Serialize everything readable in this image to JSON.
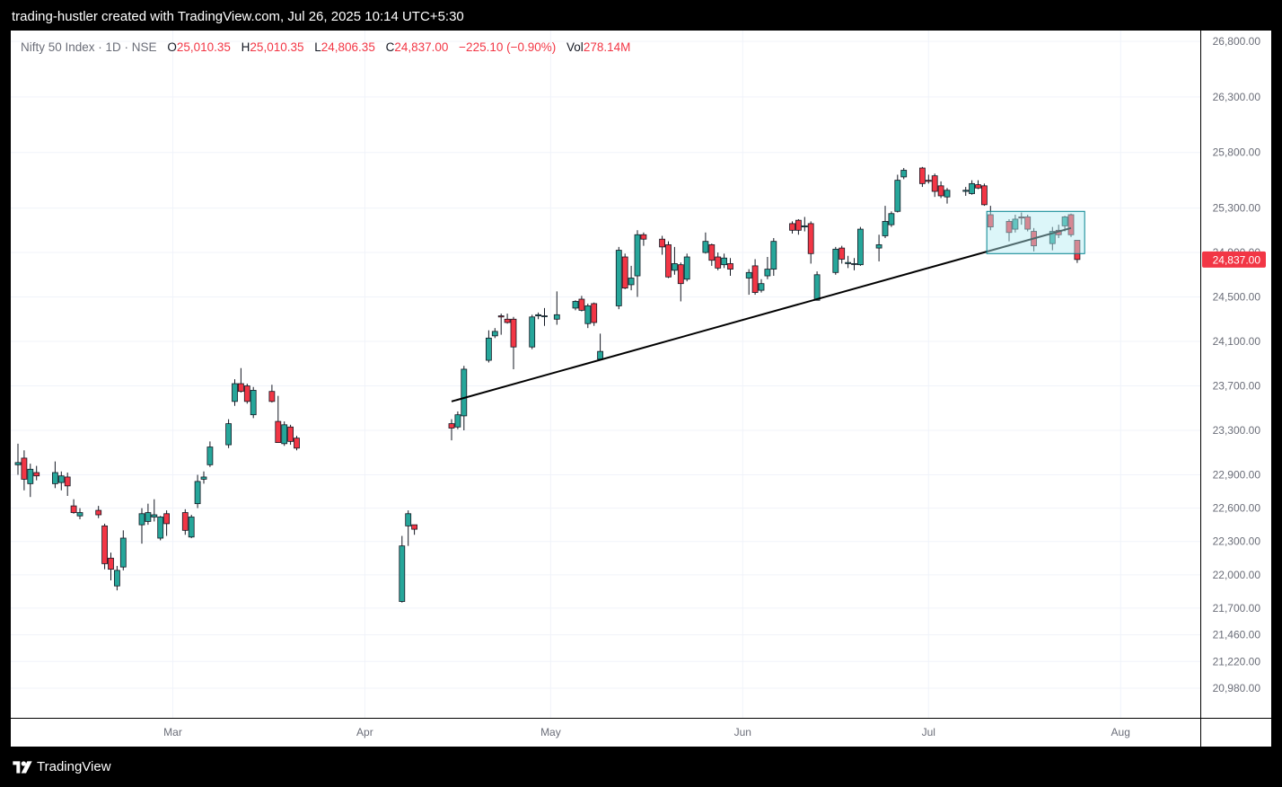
{
  "caption": "trading-hustler created with TradingView.com, Jul 26, 2025 10:14 UTC+5:30",
  "brand": {
    "name": "TradingView",
    "icon": "tradingview-logo-icon"
  },
  "legend": {
    "symbol": "Nifty 50 Index · 1D · NSE",
    "o_label": "O",
    "o_value": "25,010.35",
    "h_label": "H",
    "h_value": "25,010.35",
    "l_label": "L",
    "l_value": "24,806.35",
    "c_label": "C",
    "c_value": "24,837.00",
    "change": "−225.10 (−0.90%)",
    "vol_label": "Vol",
    "vol_value": "278.14M"
  },
  "colors": {
    "up": "#26a69a",
    "down": "#f23645",
    "wick": "#131722",
    "grid": "#f0f3fa",
    "axis_text": "#6a6d78",
    "trendline": "#000000",
    "box_fill": "#b2ebf2",
    "box_stroke": "#00838f",
    "price_tag": "#f23645"
  },
  "chart_data": {
    "type": "candlestick",
    "symbol": "Nifty 50 Index",
    "interval": "1D",
    "exchange": "NSE",
    "y_ticks": [
      26800,
      26300,
      25800,
      25300,
      24900,
      24500,
      24100,
      23700,
      23300,
      22900,
      22600,
      22300,
      22000,
      21700,
      21460,
      21220,
      20980
    ],
    "y_tick_labels": [
      "26,800.00",
      "26,300.00",
      "25,800.00",
      "25,300.00",
      "24,900.00",
      "24,500.00",
      "24,100.00",
      "23,700.00",
      "23,300.00",
      "22,900.00",
      "22,600.00",
      "22,300.00",
      "22,000.00",
      "21,700.00",
      "21,460.00",
      "21,220.00",
      "20,980.00"
    ],
    "x_labels": [
      {
        "label": "Mar",
        "date": "2025-03-01"
      },
      {
        "label": "Apr",
        "date": "2025-04-01"
      },
      {
        "label": "May",
        "date": "2025-05-01"
      },
      {
        "label": "Jun",
        "date": "2025-06-01"
      },
      {
        "label": "Jul",
        "date": "2025-07-01"
      },
      {
        "label": "Aug",
        "date": "2025-08-01"
      }
    ],
    "last_price": 24837.0,
    "last_price_label": "24,837.00",
    "candles": [
      {
        "date": "2025-02-04",
        "o": 22990,
        "h": 23180,
        "l": 22900,
        "c": 23010
      },
      {
        "date": "2025-02-05",
        "o": 23050,
        "h": 23120,
        "l": 22760,
        "c": 22860
      },
      {
        "date": "2025-02-06",
        "o": 22820,
        "h": 23000,
        "l": 22700,
        "c": 22950
      },
      {
        "date": "2025-02-07",
        "o": 22920,
        "h": 22980,
        "l": 22850,
        "c": 22890
      },
      {
        "date": "2025-02-10",
        "o": 22820,
        "h": 23020,
        "l": 22780,
        "c": 22920
      },
      {
        "date": "2025-02-11",
        "o": 22830,
        "h": 22930,
        "l": 22760,
        "c": 22890
      },
      {
        "date": "2025-02-12",
        "o": 22880,
        "h": 22920,
        "l": 22710,
        "c": 22800
      },
      {
        "date": "2025-02-13",
        "o": 22620,
        "h": 22680,
        "l": 22550,
        "c": 22560
      },
      {
        "date": "2025-02-14",
        "o": 22530,
        "h": 22600,
        "l": 22500,
        "c": 22560
      },
      {
        "date": "2025-02-17",
        "o": 22580,
        "h": 22620,
        "l": 22510,
        "c": 22540
      },
      {
        "date": "2025-02-18",
        "o": 22440,
        "h": 22460,
        "l": 22050,
        "c": 22100
      },
      {
        "date": "2025-02-19",
        "o": 22150,
        "h": 22200,
        "l": 21950,
        "c": 22050
      },
      {
        "date": "2025-02-20",
        "o": 21900,
        "h": 22080,
        "l": 21860,
        "c": 22040
      },
      {
        "date": "2025-02-21",
        "o": 22070,
        "h": 22400,
        "l": 22040,
        "c": 22330
      },
      {
        "date": "2025-02-24",
        "o": 22450,
        "h": 22600,
        "l": 22280,
        "c": 22550
      },
      {
        "date": "2025-02-25",
        "o": 22480,
        "h": 22640,
        "l": 22450,
        "c": 22560
      },
      {
        "date": "2025-02-26",
        "o": 22520,
        "h": 22680,
        "l": 22480,
        "c": 22540
      },
      {
        "date": "2025-02-27",
        "o": 22330,
        "h": 22530,
        "l": 22310,
        "c": 22520
      },
      {
        "date": "2025-02-28",
        "o": 22550,
        "h": 22580,
        "l": 22350,
        "c": 22460
      },
      {
        "date": "2025-03-03",
        "o": 22560,
        "h": 22590,
        "l": 22360,
        "c": 22400
      },
      {
        "date": "2025-03-04",
        "o": 22340,
        "h": 22540,
        "l": 22330,
        "c": 22520
      },
      {
        "date": "2025-03-05",
        "o": 22640,
        "h": 22900,
        "l": 22600,
        "c": 22840
      },
      {
        "date": "2025-03-06",
        "o": 22860,
        "h": 22930,
        "l": 22820,
        "c": 22880
      },
      {
        "date": "2025-03-07",
        "o": 22990,
        "h": 23200,
        "l": 22970,
        "c": 23150
      },
      {
        "date": "2025-03-10",
        "o": 23170,
        "h": 23400,
        "l": 23140,
        "c": 23360
      },
      {
        "date": "2025-03-11",
        "o": 23560,
        "h": 23760,
        "l": 23520,
        "c": 23720
      },
      {
        "date": "2025-03-12",
        "o": 23720,
        "h": 23860,
        "l": 23640,
        "c": 23650
      },
      {
        "date": "2025-03-13",
        "o": 23700,
        "h": 23720,
        "l": 23540,
        "c": 23560
      },
      {
        "date": "2025-03-14",
        "o": 23440,
        "h": 23690,
        "l": 23410,
        "c": 23660
      },
      {
        "date": "2025-03-17",
        "o": 23650,
        "h": 23710,
        "l": 23550,
        "c": 23560
      },
      {
        "date": "2025-03-18",
        "o": 23380,
        "h": 23610,
        "l": 23200,
        "c": 23190
      },
      {
        "date": "2025-03-19",
        "o": 23180,
        "h": 23380,
        "l": 23160,
        "c": 23350
      },
      {
        "date": "2025-03-20",
        "o": 23330,
        "h": 23350,
        "l": 23170,
        "c": 23200
      },
      {
        "date": "2025-03-21",
        "o": 23230,
        "h": 23250,
        "l": 23120,
        "c": 23140
      },
      {
        "date": "2025-04-07",
        "o": 21760,
        "h": 22350,
        "l": 21750,
        "c": 22260
      },
      {
        "date": "2025-04-08",
        "o": 22440,
        "h": 22580,
        "l": 22260,
        "c": 22550
      },
      {
        "date": "2025-04-09",
        "o": 22450,
        "h": 22450,
        "l": 22360,
        "c": 22410
      },
      {
        "date": "2025-04-15",
        "o": 23360,
        "h": 23400,
        "l": 23210,
        "c": 23320
      },
      {
        "date": "2025-04-16",
        "o": 23330,
        "h": 23470,
        "l": 23310,
        "c": 23440
      },
      {
        "date": "2025-04-17",
        "o": 23430,
        "h": 23880,
        "l": 23300,
        "c": 23850
      },
      {
        "date": "2025-04-21",
        "o": 23930,
        "h": 24200,
        "l": 23910,
        "c": 24130
      },
      {
        "date": "2025-04-22",
        "o": 24150,
        "h": 24220,
        "l": 24130,
        "c": 24190
      },
      {
        "date": "2025-04-23",
        "o": 24330,
        "h": 24350,
        "l": 24160,
        "c": 24320
      },
      {
        "date": "2025-04-24",
        "o": 24300,
        "h": 24350,
        "l": 24260,
        "c": 24270
      },
      {
        "date": "2025-04-25",
        "o": 24300,
        "h": 24320,
        "l": 23850,
        "c": 24050
      },
      {
        "date": "2025-04-28",
        "o": 24050,
        "h": 24340,
        "l": 24030,
        "c": 24320
      },
      {
        "date": "2025-04-29",
        "o": 24330,
        "h": 24360,
        "l": 24300,
        "c": 24340
      },
      {
        "date": "2025-04-30",
        "o": 24330,
        "h": 24400,
        "l": 24240,
        "c": 24330
      },
      {
        "date": "2025-05-02",
        "o": 24300,
        "h": 24550,
        "l": 24250,
        "c": 24340
      },
      {
        "date": "2025-05-05",
        "o": 24400,
        "h": 24470,
        "l": 24380,
        "c": 24460
      },
      {
        "date": "2025-05-06",
        "o": 24480,
        "h": 24510,
        "l": 24370,
        "c": 24380
      },
      {
        "date": "2025-05-07",
        "o": 24260,
        "h": 24440,
        "l": 24220,
        "c": 24420
      },
      {
        "date": "2025-05-08",
        "o": 24440,
        "h": 24450,
        "l": 24240,
        "c": 24270
      },
      {
        "date": "2025-05-09",
        "o": 23940,
        "h": 24170,
        "l": 23930,
        "c": 24010
      },
      {
        "date": "2025-05-12",
        "o": 24420,
        "h": 24950,
        "l": 24390,
        "c": 24920
      },
      {
        "date": "2025-05-13",
        "o": 24860,
        "h": 24890,
        "l": 24570,
        "c": 24580
      },
      {
        "date": "2025-05-14",
        "o": 24610,
        "h": 24780,
        "l": 24560,
        "c": 24670
      },
      {
        "date": "2025-05-15",
        "o": 24690,
        "h": 25100,
        "l": 24500,
        "c": 25060
      },
      {
        "date": "2025-05-16",
        "o": 25060,
        "h": 25080,
        "l": 24960,
        "c": 25020
      },
      {
        "date": "2025-05-19",
        "o": 25020,
        "h": 25050,
        "l": 24880,
        "c": 24950
      },
      {
        "date": "2025-05-20",
        "o": 24970,
        "h": 25000,
        "l": 24670,
        "c": 24680
      },
      {
        "date": "2025-05-21",
        "o": 24740,
        "h": 24950,
        "l": 24700,
        "c": 24800
      },
      {
        "date": "2025-05-22",
        "o": 24790,
        "h": 24810,
        "l": 24460,
        "c": 24620
      },
      {
        "date": "2025-05-23",
        "o": 24660,
        "h": 24890,
        "l": 24640,
        "c": 24860
      },
      {
        "date": "2025-05-26",
        "o": 24900,
        "h": 25080,
        "l": 24890,
        "c": 25000
      },
      {
        "date": "2025-05-27",
        "o": 24970,
        "h": 24980,
        "l": 24780,
        "c": 24830
      },
      {
        "date": "2025-05-28",
        "o": 24860,
        "h": 24900,
        "l": 24740,
        "c": 24760
      },
      {
        "date": "2025-05-29",
        "o": 24790,
        "h": 24890,
        "l": 24760,
        "c": 24850
      },
      {
        "date": "2025-05-30",
        "o": 24800,
        "h": 24850,
        "l": 24690,
        "c": 24750
      },
      {
        "date": "2025-06-02",
        "o": 24670,
        "h": 24750,
        "l": 24520,
        "c": 24720
      },
      {
        "date": "2025-06-03",
        "o": 24780,
        "h": 24840,
        "l": 24520,
        "c": 24540
      },
      {
        "date": "2025-06-04",
        "o": 24560,
        "h": 24660,
        "l": 24540,
        "c": 24620
      },
      {
        "date": "2025-06-05",
        "o": 24690,
        "h": 24860,
        "l": 24660,
        "c": 24750
      },
      {
        "date": "2025-06-06",
        "o": 24750,
        "h": 25030,
        "l": 24690,
        "c": 25000
      },
      {
        "date": "2025-06-09",
        "o": 25160,
        "h": 25180,
        "l": 25070,
        "c": 25100
      },
      {
        "date": "2025-06-10",
        "o": 25190,
        "h": 25200,
        "l": 25060,
        "c": 25100
      },
      {
        "date": "2025-06-11",
        "o": 25130,
        "h": 25220,
        "l": 25090,
        "c": 25140
      },
      {
        "date": "2025-06-12",
        "o": 25160,
        "h": 25180,
        "l": 24800,
        "c": 24890
      },
      {
        "date": "2025-06-13",
        "o": 24470,
        "h": 24730,
        "l": 24470,
        "c": 24700
      },
      {
        "date": "2025-06-16",
        "o": 24720,
        "h": 24950,
        "l": 24700,
        "c": 24930
      },
      {
        "date": "2025-06-17",
        "o": 24940,
        "h": 24960,
        "l": 24800,
        "c": 24840
      },
      {
        "date": "2025-06-18",
        "o": 24800,
        "h": 24870,
        "l": 24760,
        "c": 24810
      },
      {
        "date": "2025-06-19",
        "o": 24800,
        "h": 24850,
        "l": 24740,
        "c": 24800
      },
      {
        "date": "2025-06-20",
        "o": 24790,
        "h": 25130,
        "l": 24780,
        "c": 25110
      },
      {
        "date": "2025-06-23",
        "o": 24940,
        "h": 25060,
        "l": 24820,
        "c": 24970
      },
      {
        "date": "2025-06-24",
        "o": 25050,
        "h": 25320,
        "l": 25030,
        "c": 25180
      },
      {
        "date": "2025-06-25",
        "o": 25150,
        "h": 25270,
        "l": 25130,
        "c": 25250
      },
      {
        "date": "2025-06-26",
        "o": 25270,
        "h": 25600,
        "l": 25260,
        "c": 25550
      },
      {
        "date": "2025-06-27",
        "o": 25580,
        "h": 25660,
        "l": 25560,
        "c": 25640
      },
      {
        "date": "2025-06-30",
        "o": 25660,
        "h": 25670,
        "l": 25490,
        "c": 25520
      },
      {
        "date": "2025-07-01",
        "o": 25550,
        "h": 25600,
        "l": 25520,
        "c": 25540
      },
      {
        "date": "2025-07-02",
        "o": 25590,
        "h": 25610,
        "l": 25400,
        "c": 25450
      },
      {
        "date": "2025-07-03",
        "o": 25500,
        "h": 25540,
        "l": 25390,
        "c": 25410
      },
      {
        "date": "2025-07-04",
        "o": 25400,
        "h": 25480,
        "l": 25340,
        "c": 25460
      },
      {
        "date": "2025-07-07",
        "o": 25450,
        "h": 25490,
        "l": 25410,
        "c": 25460
      },
      {
        "date": "2025-07-08",
        "o": 25430,
        "h": 25550,
        "l": 25420,
        "c": 25520
      },
      {
        "date": "2025-07-09",
        "o": 25510,
        "h": 25550,
        "l": 25470,
        "c": 25480
      },
      {
        "date": "2025-07-10",
        "o": 25500,
        "h": 25520,
        "l": 25320,
        "c": 25330
      },
      {
        "date": "2025-07-11",
        "o": 25240,
        "h": 25320,
        "l": 25100,
        "c": 25130
      },
      {
        "date": "2025-07-14",
        "o": 25180,
        "h": 25200,
        "l": 25000,
        "c": 25080
      },
      {
        "date": "2025-07-15",
        "o": 25110,
        "h": 25240,
        "l": 25080,
        "c": 25200
      },
      {
        "date": "2025-07-16",
        "o": 25220,
        "h": 25260,
        "l": 25150,
        "c": 25210
      },
      {
        "date": "2025-07-17",
        "o": 25220,
        "h": 25240,
        "l": 25090,
        "c": 25110
      },
      {
        "date": "2025-07-18",
        "o": 25090,
        "h": 25120,
        "l": 24910,
        "c": 24960
      },
      {
        "date": "2025-07-21",
        "o": 24980,
        "h": 25130,
        "l": 24920,
        "c": 25090
      },
      {
        "date": "2025-07-22",
        "o": 25100,
        "h": 25150,
        "l": 25030,
        "c": 25060
      },
      {
        "date": "2025-07-23",
        "o": 25140,
        "h": 25230,
        "l": 25090,
        "c": 25220
      },
      {
        "date": "2025-07-24",
        "o": 25240,
        "h": 25250,
        "l": 25040,
        "c": 25060
      },
      {
        "date": "2025-07-25",
        "o": 25010,
        "h": 25010,
        "l": 24806,
        "c": 24837
      }
    ],
    "trendline": {
      "from": {
        "date": "2025-04-15",
        "price": 23560
      },
      "to": {
        "date": "2025-07-24",
        "price": 25120
      }
    },
    "zone_box": {
      "from_date": "2025-07-10",
      "to_date": "2025-07-25",
      "from_extra_days": 0.4,
      "to_extra_days": 1.2,
      "top": 25270,
      "bottom": 24890
    }
  }
}
